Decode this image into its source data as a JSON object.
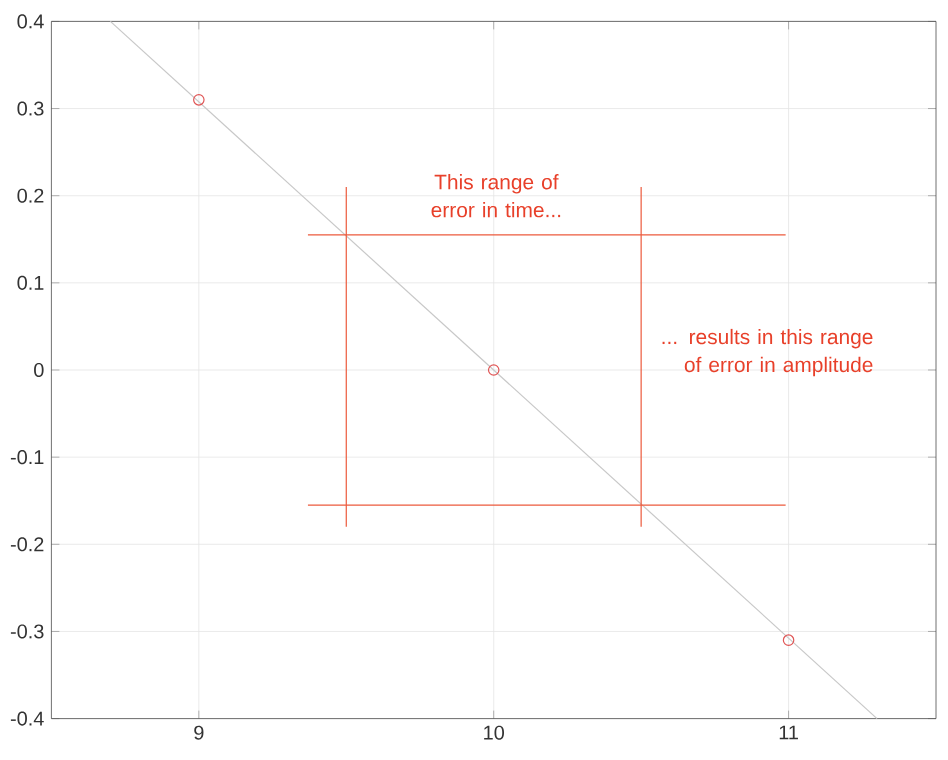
{
  "chart_data": {
    "type": "line",
    "xlim": [
      8.5,
      11.5
    ],
    "ylim": [
      -0.4,
      0.4
    ],
    "xticks": [
      9,
      10,
      11
    ],
    "yticks": [
      -0.4,
      -0.3,
      -0.2,
      -0.1,
      0,
      0.1,
      0.2,
      0.3,
      0.4
    ],
    "grid": true,
    "series": [
      {
        "color": "#c8c8c8",
        "marker": "none",
        "x": [
          8.7,
          11.3
        ],
        "values": [
          0.4,
          -0.4
        ]
      },
      {
        "type": "scatter",
        "color": "#e05555",
        "marker": "circle",
        "x": [
          9,
          10,
          11
        ],
        "values": [
          0.31,
          0,
          -0.31
        ]
      },
      {
        "color": "#ec5a3c",
        "marker": "none",
        "x": [
          9.5,
          9.5
        ],
        "values": [
          0.21,
          -0.18
        ]
      },
      {
        "color": "#ec5a3c",
        "marker": "none",
        "x": [
          10.5,
          10.5
        ],
        "values": [
          0.21,
          -0.18
        ]
      },
      {
        "color": "#ec5a3c",
        "marker": "none",
        "x": [
          9.37,
          10.99
        ],
        "values": [
          0.155,
          0.155
        ]
      },
      {
        "color": "#ec5a3c",
        "marker": "none",
        "x": [
          9.37,
          10.99
        ],
        "values": [
          -0.155,
          -0.155
        ]
      }
    ],
    "annotations": [
      "This range of error in time...",
      "... results in this range of error in amplitude"
    ]
  }
}
